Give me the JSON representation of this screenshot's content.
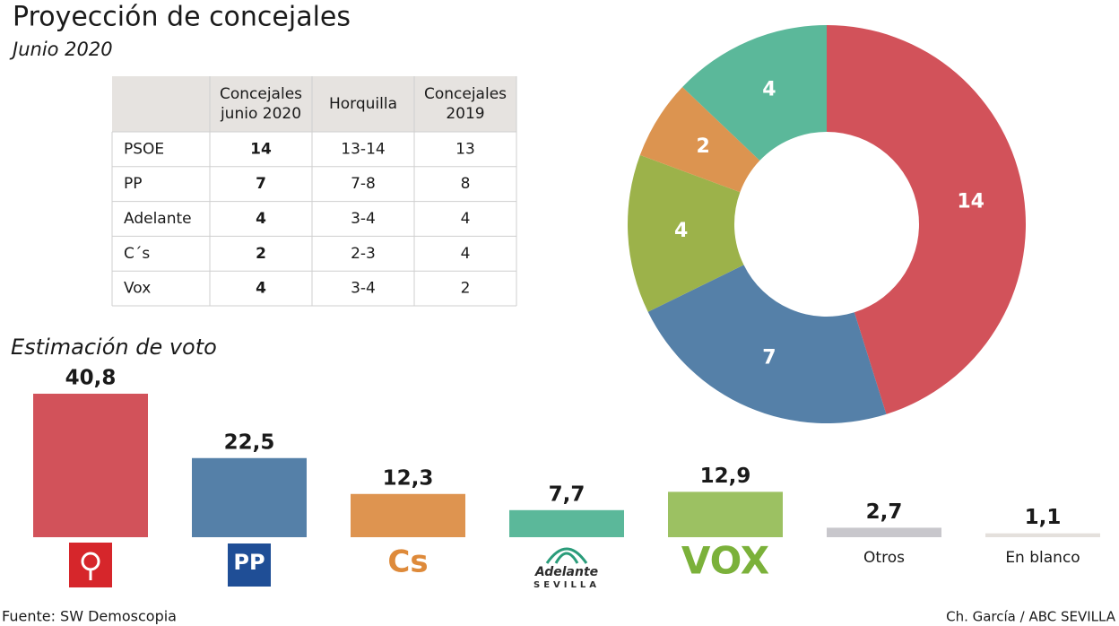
{
  "title": "Proyección de concejales",
  "subtitle": "Junio 2020",
  "table": {
    "columns": [
      [
        "Concejales",
        "junio 2020"
      ],
      [
        "Horquilla"
      ],
      [
        "Concejales",
        "2019"
      ]
    ],
    "rows": [
      [
        "PSOE",
        14,
        "13-14",
        13
      ],
      [
        "PP",
        7,
        "7-8",
        8
      ],
      [
        "Adelante",
        4,
        "3-4",
        4
      ],
      [
        "C´s",
        2,
        "2-3",
        4
      ],
      [
        "Vox",
        4,
        "3-4",
        2
      ]
    ]
  },
  "chart_data": [
    {
      "type": "pie",
      "donut": true,
      "values": [
        14,
        7,
        4,
        2,
        4
      ],
      "colors": [
        "#d2525a",
        "#5580a8",
        "#9cb24a",
        "#dc9450",
        "#5bb89a"
      ]
    },
    {
      "type": "bar",
      "title": "Estimación de voto",
      "categories": [
        null,
        null,
        null,
        null,
        null,
        "Otros",
        "En blanco"
      ],
      "logos": [
        null,
        [
          "PP"
        ],
        [
          "Cs"
        ],
        [
          "Adelante",
          "SEVILLA"
        ],
        [
          "VOX"
        ],
        null,
        null
      ],
      "values": [
        40.8,
        22.5,
        12.3,
        7.7,
        12.9,
        2.7,
        1.1
      ],
      "value_labels": [
        "40,8",
        "22,5",
        "12,3",
        "7,7",
        "12,9",
        "2,7",
        "1,1"
      ],
      "colors": [
        "#d2525a",
        "#5580a8",
        "#de9450",
        "#5bb89a",
        "#9cc162",
        "#c8c7cc",
        "#e4e0dc"
      ]
    }
  ],
  "source": "Fuente: SW Demoscopia",
  "credit": "Ch. García / ABC SEVILLA"
}
